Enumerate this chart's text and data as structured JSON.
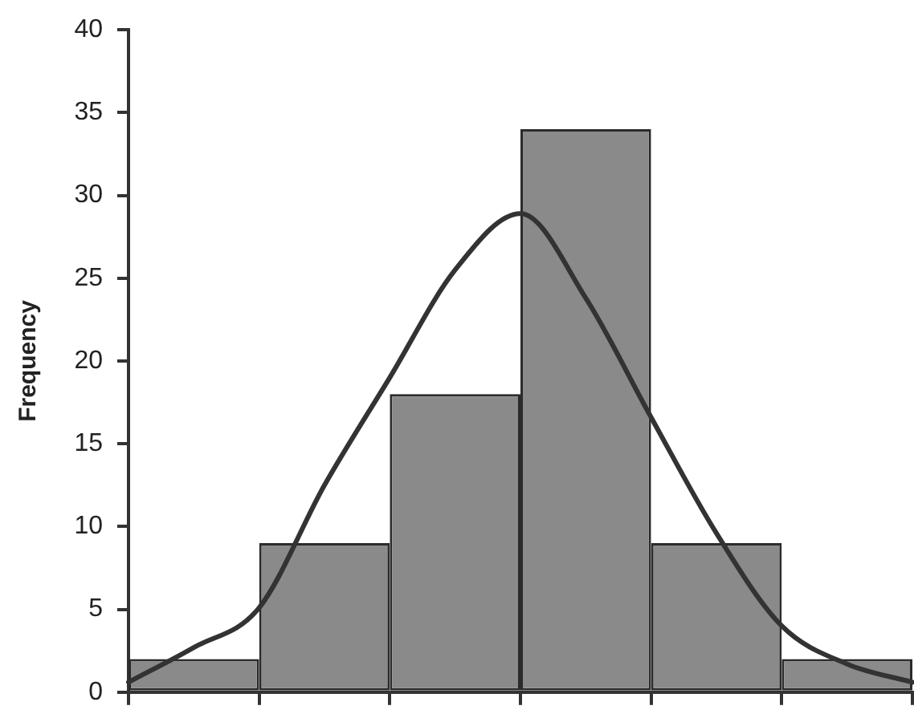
{
  "chart_data": {
    "type": "bar",
    "ylabel": "Frequency",
    "categories": [
      null,
      null,
      null,
      null,
      null,
      null,
      null,
      null,
      null,
      null,
      null,
      null,
      null
    ],
    "ylim": [
      0,
      40
    ],
    "yticks": [
      0,
      5,
      10,
      15,
      20,
      25,
      30,
      35,
      40
    ],
    "grid": false,
    "legend": false,
    "tick_labels": "y",
    "series": [
      {
        "color": "#8a8a8a",
        "values": [
          null,
          2,
          null,
          9,
          null,
          18,
          null,
          34,
          null,
          9,
          null,
          2,
          null
        ]
      },
      {
        "type": "line",
        "color": "#333333",
        "marker": "none",
        "line_style": "solid",
        "values": [
          0.6,
          2.7,
          5.1,
          12.5,
          19,
          25.5,
          28.9,
          23.8,
          16.6,
          9.6,
          4,
          1.7,
          0.6
        ]
      }
    ]
  }
}
